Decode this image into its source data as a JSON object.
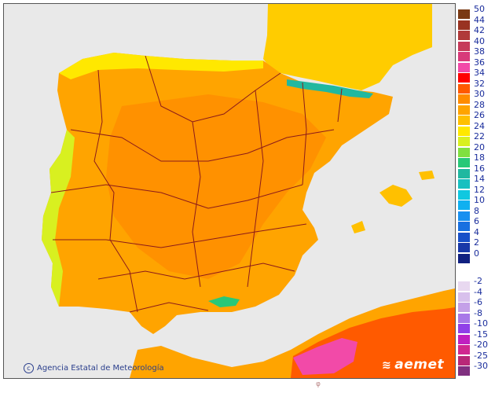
{
  "map": {
    "credit": "Agencia Estatal de Meteorología",
    "credit_symbol": "c",
    "brand": "aemet",
    "bottom_mark": "φ"
  },
  "legend": {
    "positive": [
      {
        "label": "50",
        "color": "#7a3a14"
      },
      {
        "label": "44",
        "color": "#993322"
      },
      {
        "label": "42",
        "color": "#b03a3a"
      },
      {
        "label": "40",
        "color": "#c63a5a"
      },
      {
        "label": "38",
        "color": "#d83a7a"
      },
      {
        "label": "36",
        "color": "#f24aa8"
      },
      {
        "label": "34",
        "color": "#ff0000"
      },
      {
        "label": "32",
        "color": "#ff5a00"
      },
      {
        "label": "30",
        "color": "#ff8c00"
      },
      {
        "label": "28",
        "color": "#ffa400"
      },
      {
        "label": "26",
        "color": "#ffc000"
      },
      {
        "label": "24",
        "color": "#ffe800"
      },
      {
        "label": "22",
        "color": "#d8f020"
      },
      {
        "label": "20",
        "color": "#80e040"
      },
      {
        "label": "18",
        "color": "#28c878"
      },
      {
        "label": "16",
        "color": "#20b8a0"
      },
      {
        "label": "14",
        "color": "#18c0c0"
      },
      {
        "label": "12",
        "color": "#10c8e0"
      },
      {
        "label": "10",
        "color": "#10b0f0"
      },
      {
        "label": "8",
        "color": "#1890f0"
      },
      {
        "label": "6",
        "color": "#1870e0"
      },
      {
        "label": "4",
        "color": "#1850c8"
      },
      {
        "label": "2",
        "color": "#1838a8"
      },
      {
        "label": "0",
        "color": "#102080"
      }
    ],
    "negative": [
      {
        "label": "-2",
        "color": "#e8d8f0"
      },
      {
        "label": "-4",
        "color": "#d8c0ec"
      },
      {
        "label": "-6",
        "color": "#c4a0e8"
      },
      {
        "label": "-8",
        "color": "#a878e8"
      },
      {
        "label": "-10",
        "color": "#9040e8"
      },
      {
        "label": "-15",
        "color": "#c020c0"
      },
      {
        "label": "-20",
        "color": "#d02890"
      },
      {
        "label": "-25",
        "color": "#b82878"
      },
      {
        "label": "-30",
        "color": "#803080"
      }
    ]
  }
}
